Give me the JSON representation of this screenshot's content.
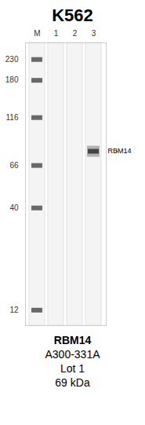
{
  "chart_data": {
    "type": "blot",
    "title": "K562",
    "categories": [
      "M",
      "1",
      "2",
      "3"
    ],
    "log": "y",
    "ylim": [
      10,
      280
    ],
    "yticks": [
      230,
      180,
      116,
      66,
      40,
      12
    ],
    "bands": [
      {
        "lane": "M",
        "values": [
          230,
          180,
          116,
          66,
          40,
          12
        ],
        "color": "#5a5a5a"
      },
      {
        "lane": "3",
        "values": [
          78
        ],
        "label": "RBM14",
        "color": "#3a3a3a"
      }
    ],
    "caption": [
      "RBM14",
      "A300-331A",
      "Lot 1",
      "69 kDa"
    ]
  }
}
